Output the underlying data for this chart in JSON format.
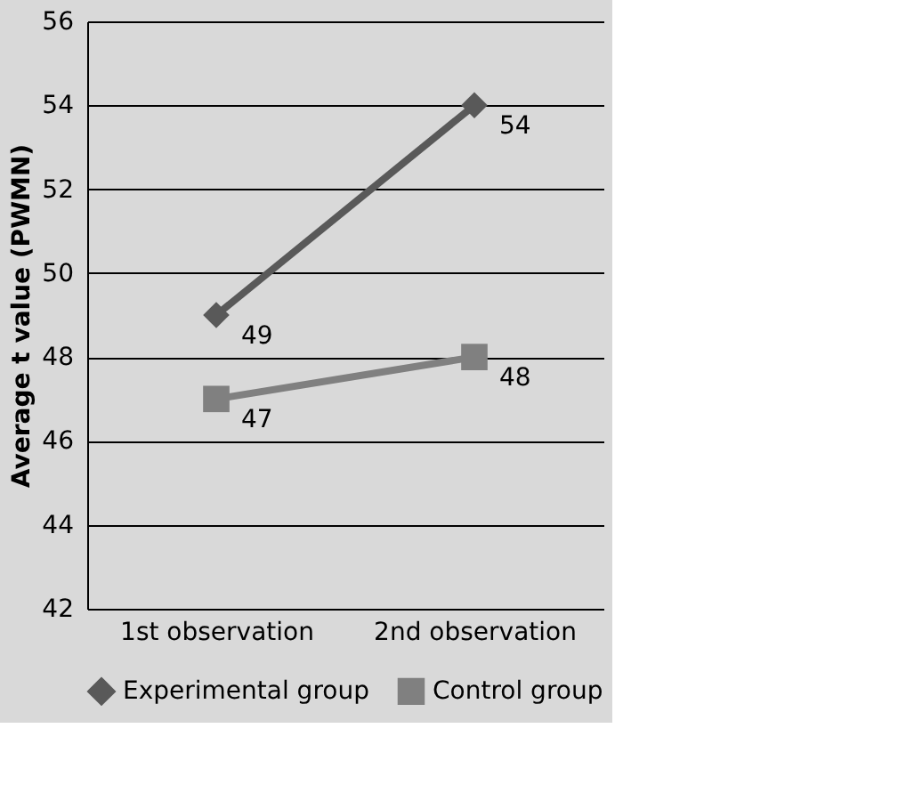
{
  "chart_data": {
    "type": "line",
    "ylabel": "Average t value (PWMN)",
    "categories": [
      "1st observation",
      "2nd observation"
    ],
    "series": [
      {
        "name": "Experimental group",
        "color": "#595959",
        "marker": "diamond",
        "values": [
          49,
          54
        ]
      },
      {
        "name": "Control group",
        "color": "#808080",
        "marker": "square",
        "values": [
          47,
          48
        ]
      }
    ],
    "ylim": [
      42,
      56
    ],
    "yticks": [
      42,
      44,
      46,
      48,
      50,
      52,
      54,
      56
    ],
    "grid": "y",
    "legend": "bottom",
    "data_labels": true
  }
}
